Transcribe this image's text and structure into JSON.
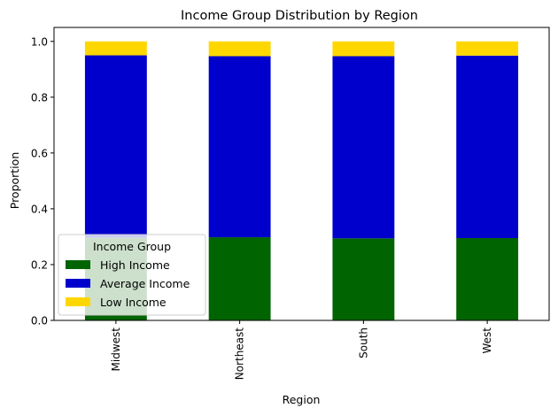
{
  "chart_data": {
    "type": "bar",
    "stacked": true,
    "title": "Income Group Distribution by Region",
    "xlabel": "Region",
    "ylabel": "Proportion",
    "ylim": [
      0,
      1.05
    ],
    "yticks": [
      "0.0",
      "0.2",
      "0.4",
      "0.6",
      "0.8",
      "1.0"
    ],
    "categories": [
      "Midwest",
      "Northeast",
      "South",
      "West"
    ],
    "series": [
      {
        "name": "High Income",
        "color": "#006400",
        "values": [
          0.297,
          0.298,
          0.294,
          0.295
        ]
      },
      {
        "name": "Average Income",
        "color": "#0000cd",
        "values": [
          0.653,
          0.649,
          0.653,
          0.654
        ]
      },
      {
        "name": "Low Income",
        "color": "#ffd700",
        "values": [
          0.05,
          0.053,
          0.053,
          0.051
        ]
      }
    ],
    "legend": {
      "title": "Income Group",
      "position": "lower-left"
    },
    "grid": false
  }
}
